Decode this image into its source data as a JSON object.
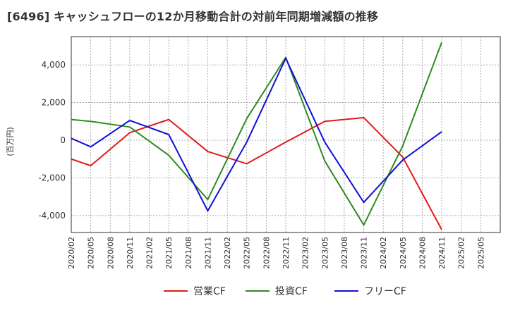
{
  "chart_data": {
    "type": "line",
    "title": "[6496]  キャッシュフローの12か月移動合計の対前年同期増減額の推移",
    "ylabel": "(百万円)",
    "xlabel": "",
    "ylim": [
      -4900,
      5500
    ],
    "yticks": [
      4000,
      2000,
      0,
      -2000,
      -4000
    ],
    "ytick_labels": [
      "4,000",
      "2,000",
      "0",
      "-2,000",
      "-4,000"
    ],
    "x_tick_labels": [
      "2020/02",
      "2020/05",
      "2020/08",
      "2020/11",
      "2021/02",
      "2021/05",
      "2021/08",
      "2021/11",
      "2022/02",
      "2022/05",
      "2022/08",
      "2022/11",
      "2023/02",
      "2023/05",
      "2023/08",
      "2023/11",
      "2024/02",
      "2024/05",
      "2024/08",
      "2024/11",
      "2025/02",
      "2025/05"
    ],
    "grid": true,
    "legend_position": "bottom",
    "colors": {
      "operating": "#e31a1c",
      "investing": "#2e8b20",
      "free": "#1010d8"
    },
    "series": [
      {
        "name": "営業CF",
        "color": "#e31a1c",
        "x": [
          "2020/02",
          "2020/05",
          "2020/11",
          "2021/05",
          "2021/11",
          "2022/05",
          "2022/11",
          "2023/05",
          "2023/11",
          "2024/05",
          "2024/11"
        ],
        "values": [
          -1000,
          -1350,
          400,
          1100,
          -600,
          -1250,
          -100,
          1000,
          1200,
          -900,
          -4750
        ]
      },
      {
        "name": "投資CF",
        "color": "#2e8b20",
        "x": [
          "2020/02",
          "2020/05",
          "2020/11",
          "2021/05",
          "2021/11",
          "2022/05",
          "2022/11",
          "2023/05",
          "2023/11",
          "2024/05",
          "2024/11"
        ],
        "values": [
          1100,
          1000,
          700,
          -800,
          -3150,
          1150,
          4400,
          -1100,
          -4500,
          -300,
          5200
        ]
      },
      {
        "name": "フリーCF",
        "color": "#1010d8",
        "x": [
          "2020/02",
          "2020/05",
          "2020/11",
          "2021/05",
          "2021/11",
          "2022/05",
          "2022/11",
          "2023/05",
          "2023/11",
          "2024/05",
          "2024/11"
        ],
        "values": [
          100,
          -350,
          1050,
          300,
          -3750,
          -100,
          4350,
          -100,
          -3300,
          -1050,
          450
        ]
      }
    ]
  }
}
